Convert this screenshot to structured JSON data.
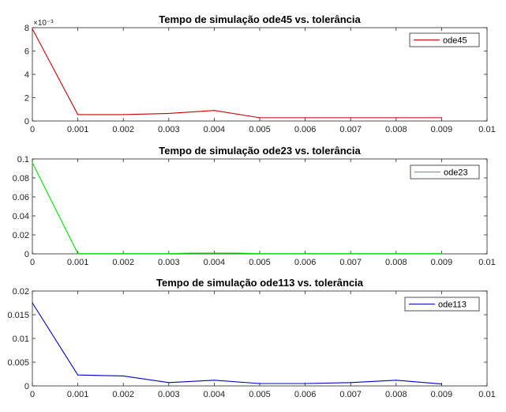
{
  "chart_data": [
    {
      "type": "line",
      "title": "Tempo de simulação ode45 vs. tolerância",
      "xlabel": "",
      "ylabel": "",
      "xlim": [
        0,
        0.01
      ],
      "ylim": [
        0,
        0.008
      ],
      "x_ticks": [
        "0",
        "0.001",
        "0.002",
        "0.003",
        "0.004",
        "0.005",
        "0.006",
        "0.007",
        "0.008",
        "0.009",
        "0.01"
      ],
      "y_ticks": [
        "0",
        "2",
        "4",
        "6",
        "8"
      ],
      "y_exponent": "×10⁻³",
      "legend_position": "top-right",
      "series": [
        {
          "name": "ode45",
          "color": "#cc0000",
          "x": [
            0,
            0.001,
            0.002,
            0.003,
            0.004,
            0.005,
            0.006,
            0.007,
            0.008,
            0.009
          ],
          "y": [
            0.0079,
            0.00055,
            0.00055,
            0.00065,
            0.0009,
            0.00028,
            0.00028,
            0.00028,
            0.00028,
            0.00028
          ]
        }
      ]
    },
    {
      "type": "line",
      "title": "Tempo de simulação ode23 vs. tolerância",
      "xlabel": "",
      "ylabel": "",
      "xlim": [
        0,
        0.01
      ],
      "ylim": [
        0,
        0.1
      ],
      "x_ticks": [
        "0",
        "0.001",
        "0.002",
        "0.003",
        "0.004",
        "0.005",
        "0.006",
        "0.007",
        "0.008",
        "0.009",
        "0.01"
      ],
      "y_ticks": [
        "0",
        "0.02",
        "0.04",
        "0.06",
        "0.08",
        "0.1"
      ],
      "legend_position": "top-right",
      "series": [
        {
          "name": "ode23",
          "color": "#00dd00",
          "x": [
            0,
            0.001,
            0.002,
            0.003,
            0.0035,
            0.0045,
            0.005,
            0.006,
            0.007,
            0.008,
            0.009
          ],
          "y": [
            0.096,
            0.0003,
            0.0003,
            0.0003,
            0.0008,
            0.0008,
            0.0003,
            0.0003,
            0.0003,
            0.0003,
            0.0003
          ]
        }
      ]
    },
    {
      "type": "line",
      "title": "Tempo de simulação ode113 vs. tolerância",
      "xlabel": "",
      "ylabel": "",
      "xlim": [
        0,
        0.01
      ],
      "ylim": [
        0,
        0.02
      ],
      "x_ticks": [
        "0",
        "0.001",
        "0.002",
        "0.003",
        "0.004",
        "0.005",
        "0.006",
        "0.007",
        "0.008",
        "0.009",
        "0.01"
      ],
      "y_ticks": [
        "0",
        "0.005",
        "0.01",
        "0.015",
        "0.02"
      ],
      "legend_position": "top-right",
      "series": [
        {
          "name": "ode113",
          "color": "#0000cc",
          "x": [
            0,
            0.001,
            0.002,
            0.003,
            0.004,
            0.005,
            0.006,
            0.007,
            0.008,
            0.009
          ],
          "y": [
            0.0175,
            0.0023,
            0.0021,
            0.0007,
            0.0012,
            0.0005,
            0.0005,
            0.0007,
            0.0012,
            0.0004
          ]
        }
      ]
    }
  ]
}
